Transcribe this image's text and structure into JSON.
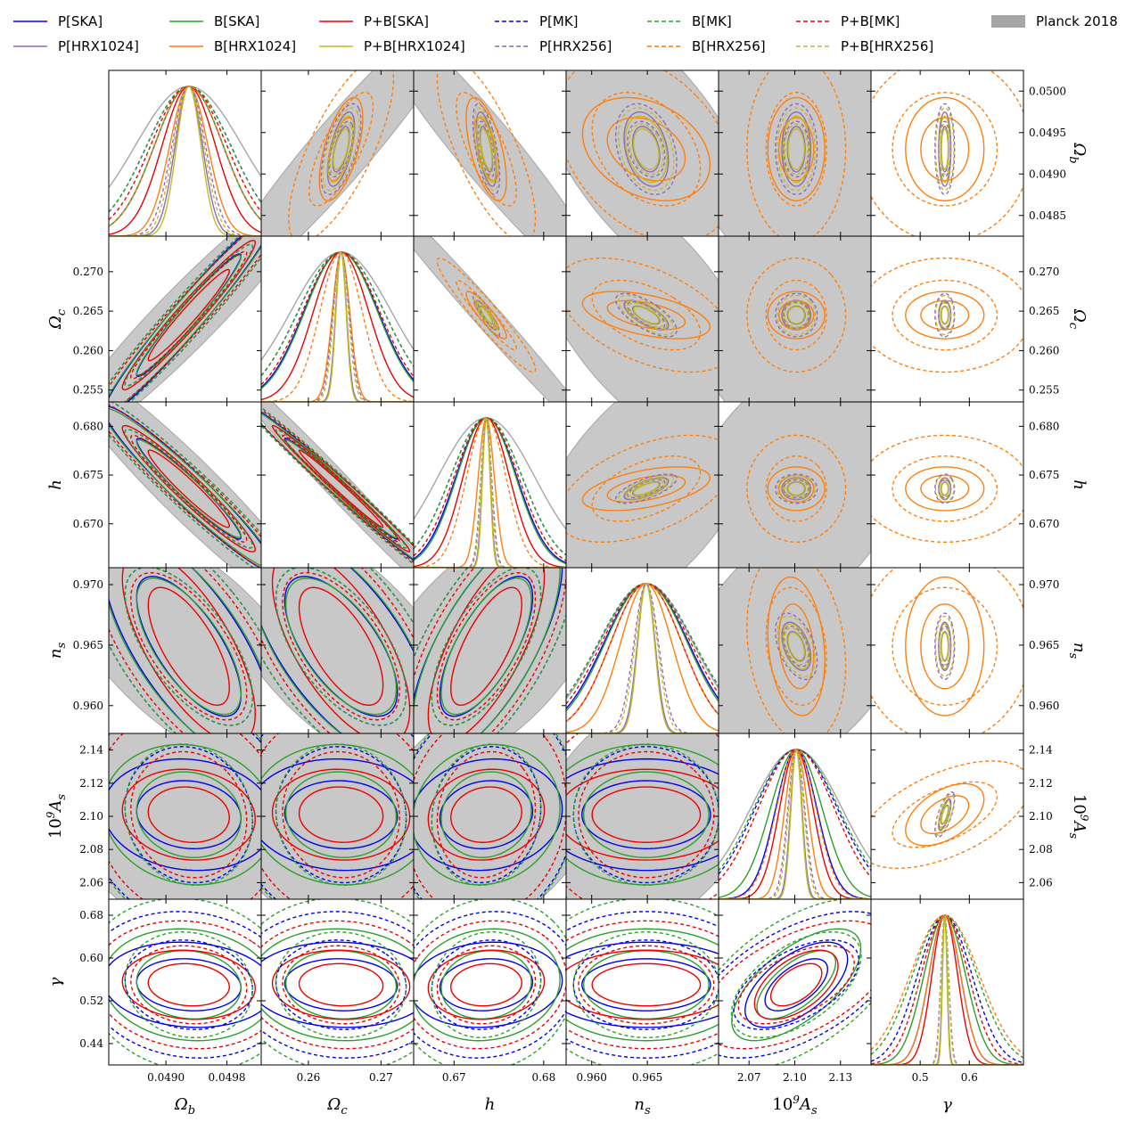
{
  "chart_data": {
    "type": "triangle",
    "title": "",
    "legend_position": "top",
    "parameters": [
      {
        "name": "Omega_b",
        "label": "Ω_b",
        "label_italic": "Ω",
        "label_sub": "b",
        "range": [
          0.04825,
          0.05025
        ],
        "fiducial": 0.0493,
        "ticks_bottom": [
          {
            "v": 0.049,
            "t": "0.0490"
          },
          {
            "v": 0.0498,
            "t": "0.0498"
          }
        ],
        "ticks_side": [
          {
            "v": 0.0485,
            "t": "0.0485"
          },
          {
            "v": 0.049,
            "t": "0.0490"
          },
          {
            "v": 0.0495,
            "t": "0.0495"
          },
          {
            "v": 0.05,
            "t": "0.0500"
          }
        ]
      },
      {
        "name": "Omega_c",
        "label": "Ω_c",
        "label_italic": "Ω",
        "label_sub": "c",
        "range": [
          0.2535,
          0.2745
        ],
        "fiducial": 0.2645,
        "ticks_bottom": [
          {
            "v": 0.26,
            "t": "0.26"
          },
          {
            "v": 0.27,
            "t": "0.27"
          }
        ],
        "ticks_side": [
          {
            "v": 0.255,
            "t": "0.255"
          },
          {
            "v": 0.26,
            "t": "0.260"
          },
          {
            "v": 0.265,
            "t": "0.265"
          },
          {
            "v": 0.27,
            "t": "0.270"
          }
        ]
      },
      {
        "name": "h",
        "label": "h",
        "label_italic": "h",
        "label_sub": "",
        "range": [
          0.6655,
          0.6825
        ],
        "fiducial": 0.6736,
        "ticks_bottom": [
          {
            "v": 0.67,
            "t": "0.67"
          },
          {
            "v": 0.68,
            "t": "0.68"
          }
        ],
        "ticks_side": [
          {
            "v": 0.67,
            "t": "0.670"
          },
          {
            "v": 0.675,
            "t": "0.675"
          },
          {
            "v": 0.68,
            "t": "0.680"
          }
        ]
      },
      {
        "name": "n_s",
        "label": "n_s",
        "label_italic": "n",
        "label_sub": "s",
        "range": [
          0.9577,
          0.9714
        ],
        "fiducial": 0.9649,
        "ticks_bottom": [
          {
            "v": 0.96,
            "t": "0.960"
          },
          {
            "v": 0.965,
            "t": "0.965"
          }
        ],
        "ticks_side": [
          {
            "v": 0.96,
            "t": "0.960"
          },
          {
            "v": 0.965,
            "t": "0.965"
          },
          {
            "v": 0.97,
            "t": "0.970"
          }
        ]
      },
      {
        "name": "10^9 A_s",
        "label": "10^9 A_s",
        "label_italic": "A",
        "label_sub": "s",
        "label_prefix": "10",
        "label_sup": "9",
        "range": [
          2.05,
          2.15
        ],
        "fiducial": 2.101,
        "ticks_bottom": [
          {
            "v": 2.07,
            "t": "2.07"
          },
          {
            "v": 2.1,
            "t": "2.10"
          },
          {
            "v": 2.13,
            "t": "2.13"
          }
        ],
        "ticks_side": [
          {
            "v": 2.06,
            "t": "2.06"
          },
          {
            "v": 2.08,
            "t": "2.08"
          },
          {
            "v": 2.1,
            "t": "2.10"
          },
          {
            "v": 2.12,
            "t": "2.12"
          },
          {
            "v": 2.14,
            "t": "2.14"
          }
        ]
      },
      {
        "name": "gamma",
        "label": "γ",
        "label_italic": "γ",
        "label_sub": "",
        "range": [
          0.4,
          0.71
        ],
        "fiducial": 0.55,
        "ticks_bottom": [
          {
            "v": 0.5,
            "t": "0.5"
          },
          {
            "v": 0.6,
            "t": "0.6"
          }
        ],
        "ticks_side": [
          {
            "v": 0.44,
            "t": "0.44"
          },
          {
            "v": 0.52,
            "t": "0.52"
          },
          {
            "v": 0.6,
            "t": "0.60"
          },
          {
            "v": 0.68,
            "t": "0.68"
          }
        ]
      }
    ],
    "legend": [
      {
        "label": "P[SKA]",
        "color": "#0000ee",
        "dash": false,
        "kind": "line"
      },
      {
        "label": "B[SKA]",
        "color": "#2ca02c",
        "dash": false,
        "kind": "line"
      },
      {
        "label": "P+B[SKA]",
        "color": "#ee0000",
        "dash": false,
        "kind": "line"
      },
      {
        "label": "P[MK]",
        "color": "#0000ee",
        "dash": true,
        "kind": "line"
      },
      {
        "label": "B[MK]",
        "color": "#2ca02c",
        "dash": true,
        "kind": "line"
      },
      {
        "label": "P+B[MK]",
        "color": "#ee0000",
        "dash": true,
        "kind": "line"
      },
      {
        "label": "Planck 2018",
        "color": "#a6a6a6",
        "dash": false,
        "kind": "patch"
      },
      {
        "label": "P[HRX1024]",
        "color": "#9467bd",
        "dash": false,
        "kind": "line"
      },
      {
        "label": "B[HRX1024]",
        "color": "#ff7f0e",
        "dash": false,
        "kind": "line"
      },
      {
        "label": "P+B[HRX1024]",
        "color": "#bcbd22",
        "dash": false,
        "kind": "line"
      },
      {
        "label": "P[HRX256]",
        "color": "#9467bd",
        "dash": true,
        "kind": "line"
      },
      {
        "label": "B[HRX256]",
        "color": "#ff7f0e",
        "dash": true,
        "kind": "line"
      },
      {
        "label": "P+B[HRX256]",
        "color": "#bcbd22",
        "dash": true,
        "kind": "line"
      }
    ],
    "series": [
      {
        "name": "Planck 2018",
        "color": "#a6a6a6",
        "dash": false,
        "fill": "#c8c8c8",
        "sigma": [
          0.0007,
          0.0069,
          0.0054,
          0.0042,
          0.03,
          null
        ],
        "corr": {
          "0-1": 0.95,
          "0-2": -0.95,
          "0-3": -0.63,
          "0-4": -0.25,
          "1-2": -0.99,
          "1-3": -0.6,
          "1-4": -0.2,
          "2-3": 0.55,
          "2-4": 0.35,
          "3-4": 0.35
        }
      },
      {
        "name": "P[SKA]",
        "color": "#0000ee",
        "dash": false,
        "sigma": [
          0.00045,
          0.0051,
          0.0034,
          0.0038,
          0.0135,
          0.032
        ],
        "corr": {
          "0-1": 0.97,
          "0-2": -0.96,
          "0-3": -0.7,
          "0-4": -0.1,
          "0-5": -0.1,
          "1-2": -0.99,
          "1-3": -0.65,
          "1-4": -0.05,
          "1-5": -0.05,
          "2-3": 0.7,
          "2-4": 0.1,
          "2-5": 0.1,
          "3-4": 0.0,
          "3-5": 0.0,
          "4-5": 0.6
        }
      },
      {
        "name": "B[SKA]",
        "color": "#2ca02c",
        "dash": false,
        "sigma": [
          0.00045,
          0.005,
          0.0033,
          0.0037,
          0.017,
          0.042
        ],
        "corr": {
          "0-1": 0.97,
          "0-2": -0.96,
          "0-3": -0.68,
          "0-4": -0.1,
          "0-5": -0.1,
          "1-2": -0.99,
          "1-3": -0.62,
          "1-4": -0.05,
          "1-5": -0.05,
          "2-3": 0.68,
          "2-4": 0.1,
          "2-5": 0.1,
          "3-4": 0.0,
          "3-5": 0.0,
          "4-5": 0.65
        }
      },
      {
        "name": "P+B[SKA]",
        "color": "#ee0000",
        "dash": false,
        "sigma": [
          0.00035,
          0.0038,
          0.0026,
          0.0032,
          0.011,
          0.026
        ],
        "corr": {
          "0-1": 0.97,
          "0-2": -0.96,
          "0-3": -0.7,
          "0-4": -0.1,
          "0-5": -0.1,
          "1-2": -0.99,
          "1-3": -0.66,
          "1-4": -0.05,
          "1-5": -0.05,
          "2-3": 0.72,
          "2-4": 0.1,
          "2-5": 0.1,
          "3-4": 0.0,
          "3-5": 0.0,
          "4-5": 0.55
        }
      },
      {
        "name": "P[MK]",
        "color": "#0000ee",
        "dash": true,
        "sigma": [
          0.00055,
          0.0059,
          0.004,
          0.0043,
          0.027,
          0.055
        ],
        "corr": {
          "0-1": 0.97,
          "0-2": -0.96,
          "0-3": -0.65,
          "0-4": -0.1,
          "0-5": -0.1,
          "1-2": -0.99,
          "1-3": -0.6,
          "1-4": -0.05,
          "1-5": -0.05,
          "2-3": 0.65,
          "2-4": 0.1,
          "2-5": 0.1,
          "3-4": 0.0,
          "3-5": 0.0,
          "4-5": 0.55
        }
      },
      {
        "name": "B[MK]",
        "color": "#2ca02c",
        "dash": true,
        "sigma": [
          0.00055,
          0.0059,
          0.004,
          0.0043,
          0.028,
          0.065
        ],
        "corr": {
          "0-1": 0.97,
          "0-2": -0.96,
          "0-3": -0.65,
          "0-4": -0.1,
          "0-5": -0.1,
          "1-2": -0.99,
          "1-3": -0.6,
          "1-4": -0.05,
          "1-5": -0.05,
          "2-3": 0.65,
          "2-4": 0.1,
          "2-5": 0.1,
          "3-4": 0.0,
          "3-5": 0.0,
          "4-5": 0.55
        }
      },
      {
        "name": "P+B[MK]",
        "color": "#ee0000",
        "dash": true,
        "sigma": [
          0.0005,
          0.0053,
          0.0036,
          0.004,
          0.025,
          0.048
        ],
        "corr": {
          "0-1": 0.97,
          "0-2": -0.96,
          "0-3": -0.65,
          "0-4": -0.1,
          "0-5": -0.1,
          "1-2": -0.99,
          "1-3": -0.6,
          "1-4": -0.05,
          "1-5": -0.05,
          "2-3": 0.65,
          "2-4": 0.1,
          "2-5": 0.1,
          "3-4": 0.0,
          "3-5": 0.0,
          "4-5": 0.55
        }
      },
      {
        "name": "P[HRX1024]",
        "color": "#9467bd",
        "dash": false,
        "sigma": [
          0.00018,
          0.00075,
          0.00045,
          0.0008,
          0.0038,
          0.005
        ],
        "corr": {
          "0-1": 0.6,
          "0-2": -0.6,
          "0-3": -0.3,
          "0-4": 0.0,
          "0-5": 0.0,
          "1-2": -0.9,
          "1-3": -0.7,
          "1-4": 0.0,
          "1-5": 0.0,
          "2-3": 0.7,
          "2-4": 0.0,
          "2-5": 0.0,
          "3-4": -0.45,
          "3-5": 0.0,
          "4-5": 0.7
        }
      },
      {
        "name": "B[HRX1024]",
        "color": "#ff7f0e",
        "dash": false,
        "sigma": [
          0.00025,
          0.0012,
          0.0009,
          0.0023,
          0.0075,
          0.032
        ],
        "corr": {
          "0-1": 0.6,
          "0-2": -0.6,
          "0-3": -0.3,
          "0-4": 0.0,
          "0-5": 0.0,
          "1-2": -0.9,
          "1-3": -0.5,
          "1-4": 0.0,
          "1-5": 0.0,
          "2-3": 0.5,
          "2-4": 0.0,
          "2-5": 0.0,
          "3-4": -0.2,
          "3-5": 0.0,
          "4-5": 0.5
        }
      },
      {
        "name": "P+B[HRX1024]",
        "color": "#bcbd22",
        "dash": false,
        "sigma": [
          0.00016,
          0.0007,
          0.00042,
          0.00075,
          0.0035,
          0.0045
        ],
        "corr": {
          "0-1": 0.6,
          "0-2": -0.6,
          "0-3": -0.3,
          "0-4": 0.0,
          "0-5": 0.0,
          "1-2": -0.9,
          "1-3": -0.7,
          "1-4": 0.0,
          "1-5": 0.0,
          "2-3": 0.7,
          "2-4": 0.0,
          "2-5": 0.0,
          "3-4": -0.45,
          "3-5": 0.0,
          "4-5": 0.7
        }
      },
      {
        "name": "P[HRX256]",
        "color": "#9467bd",
        "dash": true,
        "sigma": [
          0.00022,
          0.0011,
          0.0006,
          0.0011,
          0.0055,
          0.008
        ],
        "corr": {
          "0-1": 0.6,
          "0-2": -0.6,
          "0-3": -0.3,
          "0-4": 0.0,
          "0-5": 0.0,
          "1-2": -0.9,
          "1-3": -0.7,
          "1-4": 0.0,
          "1-5": 0.0,
          "2-3": 0.7,
          "2-4": 0.0,
          "2-5": 0.0,
          "3-4": -0.45,
          "3-5": 0.0,
          "4-5": 0.7
        }
      },
      {
        "name": "B[HRX256]",
        "color": "#ff7f0e",
        "dash": true,
        "sigma": [
          0.00045,
          0.0029,
          0.0022,
          0.0032,
          0.013,
          0.07
        ],
        "corr": {
          "0-1": 0.75,
          "0-2": -0.75,
          "0-3": -0.35,
          "0-4": 0.0,
          "0-5": 0.0,
          "1-2": -0.95,
          "1-3": -0.5,
          "1-4": 0.0,
          "1-5": 0.0,
          "2-3": 0.5,
          "2-4": 0.0,
          "2-5": 0.0,
          "3-4": -0.2,
          "3-5": 0.0,
          "4-5": 0.55
        }
      },
      {
        "name": "P+B[HRX256]",
        "color": "#bcbd22",
        "dash": true,
        "sigma": [
          0.0002,
          0.001,
          0.00055,
          0.001,
          0.005,
          0.0075
        ],
        "corr": {
          "0-1": 0.6,
          "0-2": -0.6,
          "0-3": -0.3,
          "0-4": 0.0,
          "0-5": 0.0,
          "1-2": -0.9,
          "1-3": -0.7,
          "1-4": 0.0,
          "1-5": 0.0,
          "2-3": 0.7,
          "2-4": 0.0,
          "2-5": 0.0,
          "3-4": -0.45,
          "3-5": 0.0,
          "4-5": 0.7
        }
      }
    ]
  }
}
